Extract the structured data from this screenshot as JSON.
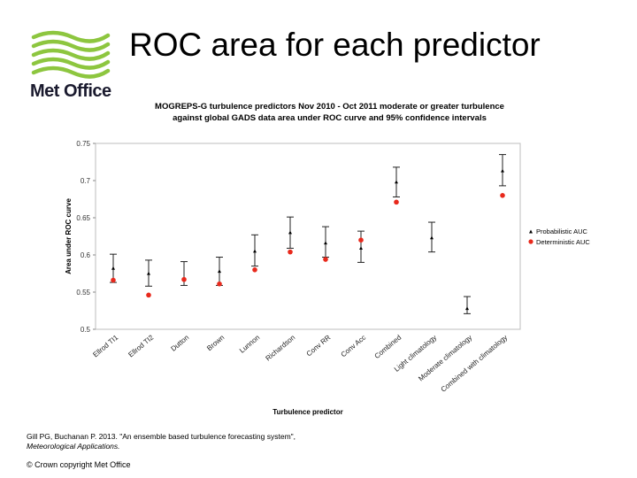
{
  "slide": {
    "title": "ROC area for each predictor",
    "logo_text": "Met Office",
    "citation_line1": "Gill PG, Buchanan P. 2013. \"An ensemble based turbulence forecasting system\",",
    "citation_journal": "Meteorological Applications.",
    "copyright": "© Crown copyright   Met Office"
  },
  "colors": {
    "logo_green": "#8dc63f",
    "probabilistic": "#000000",
    "deterministic": "#e8291c"
  },
  "chart_data": {
    "type": "scatter",
    "title_line1": "MOGREPS-G turbulence predictors Nov 2010 - Oct 2011 moderate or greater turbulence",
    "title_line2": "against global GADS data area under ROC curve and 95% confidence intervals",
    "xlabel": "Turbulence predictor",
    "ylabel": "Area under ROC curve",
    "ylim": [
      0.5,
      0.75
    ],
    "yticks": [
      "0.5",
      "0.55",
      "0.6",
      "0.65",
      "0.7",
      "0.75"
    ],
    "legend_position": "right",
    "grid": false,
    "categories": [
      "Ellrod TI1",
      "Ellrod TI2",
      "Dutton",
      "Brown",
      "Lunnon",
      "Richardson",
      "Conv RR",
      "Conv Acc",
      "Combined",
      "Light climatology",
      "Moderate climatology",
      "Combined with climatology"
    ],
    "series": [
      {
        "name": "Probabilistic AUC",
        "marker": "triangle",
        "values": [
          0.582,
          0.575,
          0.568,
          0.578,
          0.605,
          0.63,
          0.616,
          0.609,
          0.698,
          0.623,
          0.528,
          0.713
        ],
        "ci_low": [
          0.563,
          0.558,
          0.559,
          0.559,
          0.585,
          0.609,
          0.597,
          0.59,
          0.678,
          0.604,
          0.521,
          0.693
        ],
        "ci_high": [
          0.601,
          0.593,
          0.591,
          0.597,
          0.627,
          0.651,
          0.638,
          0.632,
          0.718,
          0.644,
          0.544,
          0.735
        ]
      },
      {
        "name": "Deterministic AUC",
        "marker": "circle",
        "values": [
          0.566,
          0.546,
          0.567,
          0.561,
          0.58,
          0.604,
          0.594,
          0.62,
          0.671,
          null,
          null,
          0.68
        ]
      }
    ]
  }
}
